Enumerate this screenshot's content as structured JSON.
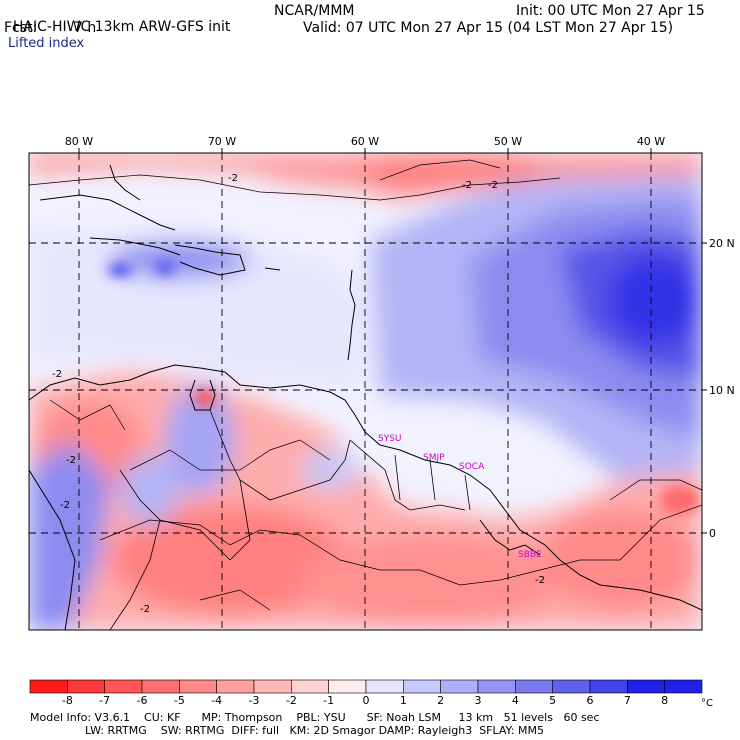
{
  "header": {
    "model_title": "HAIC-HIWC 13km ARW-GFS init",
    "org": "NCAR/MMM",
    "fcst_label": "Fcst:",
    "fcst_value": "7 h",
    "init": "Init: 00 UTC Mon 27 Apr 15",
    "valid": "Valid: 07 UTC Mon 27 Apr 15 (04 LST Mon 27 Apr 15)",
    "field": "Lifted index"
  },
  "map": {
    "lon_labels": [
      "80 W",
      "70 W",
      "60 W",
      "50 W",
      "40 W"
    ],
    "lat_labels": [
      "20 N",
      "10 N",
      "0"
    ],
    "stations": [
      "SYSU",
      "SMJP",
      "SOCA",
      "SBBE"
    ],
    "contour_label": "-2"
  },
  "colorbar": {
    "ticks": [
      "-8",
      "-7",
      "-6",
      "-5",
      "-4",
      "-3",
      "-2",
      "-1",
      "0",
      "1",
      "2",
      "3",
      "4",
      "5",
      "6",
      "7",
      "8"
    ],
    "unit": "°C",
    "colors": [
      "#ff1a1a",
      "#ff3a3a",
      "#ff5555",
      "#ff6f6f",
      "#ff8888",
      "#ffa0a0",
      "#ffb8b8",
      "#ffd2d2",
      "#ffecec",
      "#e4e4ff",
      "#c8c8ff",
      "#aeaefa",
      "#9494f4",
      "#7a7aee",
      "#6060ec",
      "#4444ec",
      "#2020e8"
    ]
  },
  "footer": {
    "line1": "Model Info: V3.6.1    CU: KF      MP: Thompson    PBL: YSU      SF: Noah LSM     13 km   51 levels   60 sec",
    "line2": "LW: RRTMG    SW: RRTMG  DIFF: full   KM: 2D Smagor DAMP: Rayleigh3  SFLAY: MM5"
  }
}
